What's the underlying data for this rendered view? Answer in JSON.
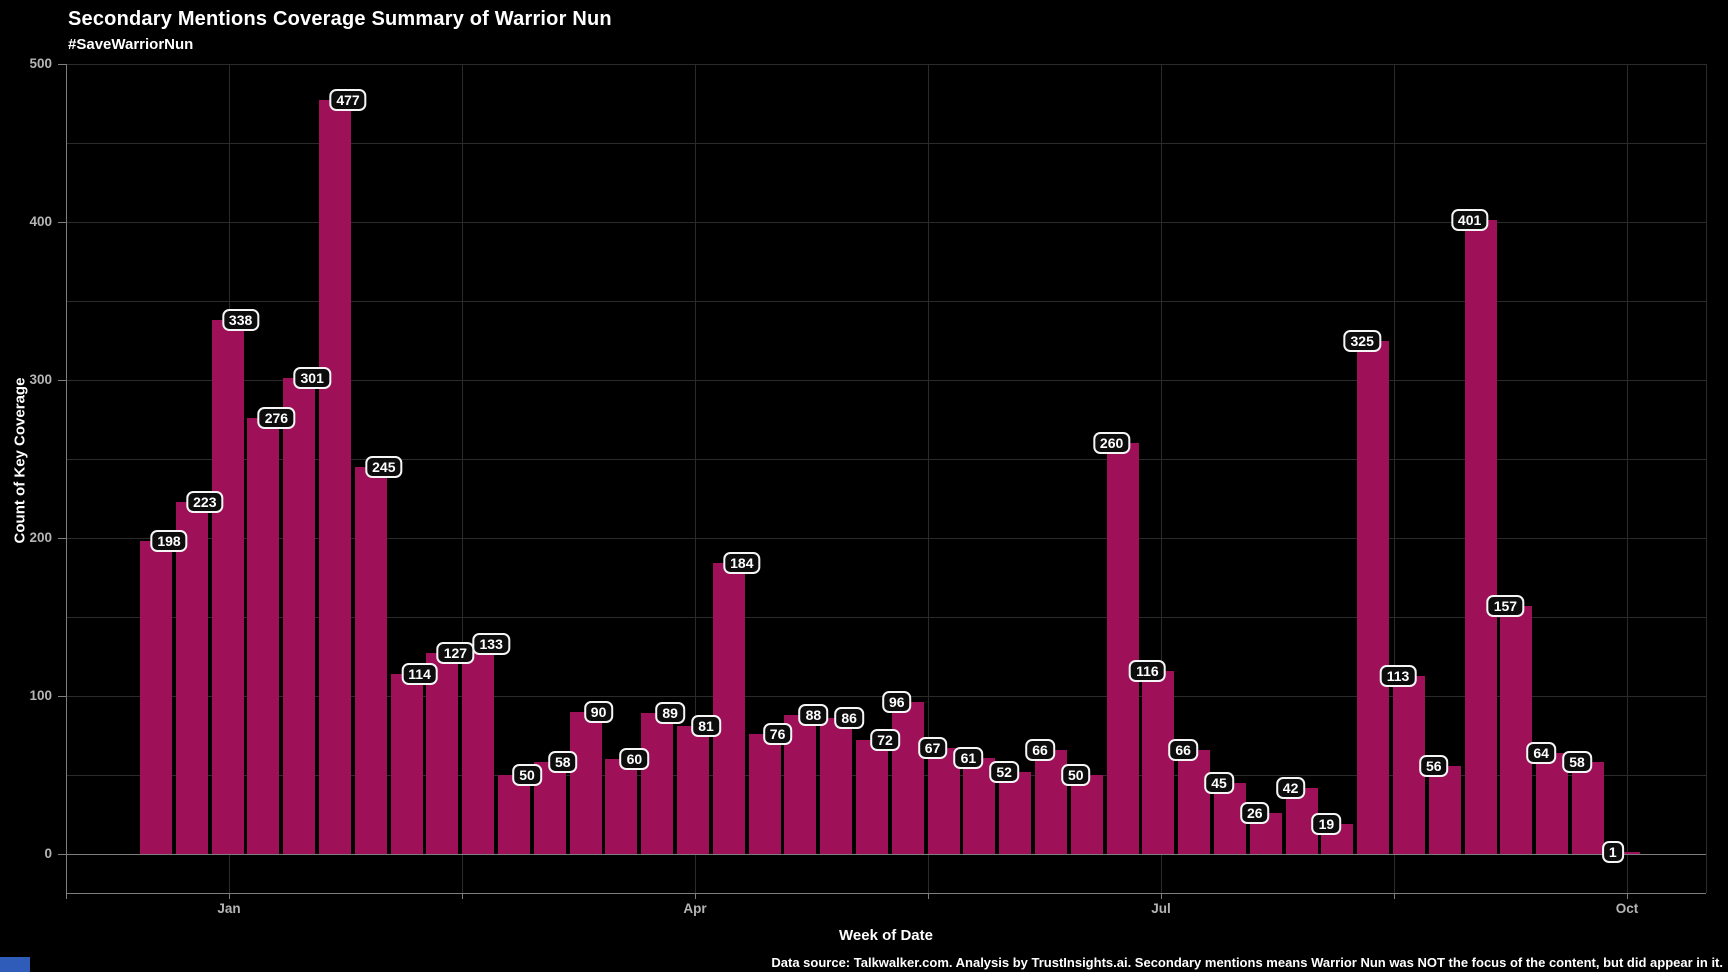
{
  "header": {
    "title": "Secondary Mentions Coverage Summary of Warrior Nun",
    "subtitle": "#SaveWarriorNun"
  },
  "footer": {
    "text": "Data source: Talkwalker.com. Analysis by TrustInsights.ai. Secondary mentions means Warrior Nun was NOT the focus of the content, but did appear in it."
  },
  "colors": {
    "background": "#000000",
    "bar": "#9e1058",
    "grid": "#2b2b2b",
    "axis": "#7d7d7d",
    "tick_text": "#b5b5b5",
    "label_box_bg": "#0d0d0d",
    "label_box_border": "#f5f5f5",
    "corner_accent": "#2e5cb8"
  },
  "chart_data": {
    "type": "bar",
    "title": "Secondary Mentions Coverage Summary of Warrior Nun",
    "subtitle": "#SaveWarriorNun",
    "xlabel": "Week of Date",
    "ylabel": "Count of Key Coverage",
    "ylim": [
      0,
      500
    ],
    "y_ticks": [
      0,
      100,
      200,
      300,
      400,
      500
    ],
    "y_gridline_interval": 50,
    "grid": true,
    "x_tick_labels": [
      "Jan",
      "Apr",
      "Jul",
      "Oct"
    ],
    "x_unit": "week",
    "bar_value_labels_shown": true,
    "values": [
      198,
      223,
      338,
      276,
      301,
      477,
      245,
      114,
      127,
      133,
      50,
      58,
      90,
      60,
      89,
      81,
      184,
      76,
      88,
      86,
      72,
      96,
      67,
      61,
      52,
      66,
      50,
      260,
      116,
      66,
      45,
      26,
      42,
      19,
      325,
      113,
      56,
      401,
      157,
      64,
      58,
      1
    ]
  }
}
